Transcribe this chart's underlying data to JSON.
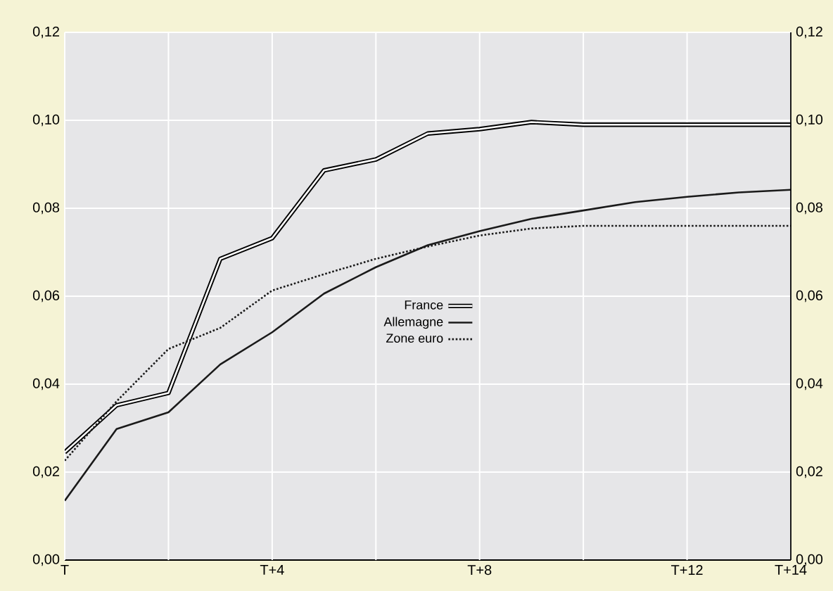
{
  "chart_data": {
    "type": "line",
    "categories": [
      "T",
      null,
      null,
      null,
      "T+4",
      null,
      null,
      null,
      "T+8",
      null,
      null,
      null,
      "T+12",
      null,
      "T+14"
    ],
    "series": [
      {
        "name": "France",
        "color": "#ffffff",
        "line_style": "solid",
        "values": [
          0.0245,
          0.0352,
          0.038,
          0.0685,
          0.0732,
          0.0886,
          0.0911,
          0.097,
          0.098,
          0.0996,
          0.099,
          0.099,
          0.099,
          0.099,
          0.099
        ]
      },
      {
        "name": "Allemagne",
        "color": "#1a1a1a",
        "line_style": "solid",
        "values": [
          0.0135,
          0.0298,
          0.0336,
          0.0445,
          0.0518,
          0.0606,
          0.0666,
          0.0716,
          0.0748,
          0.0776,
          0.0795,
          0.0814,
          0.0826,
          0.0836,
          0.0842
        ]
      },
      {
        "name": "Zone euro",
        "color": "#1a1a1a",
        "line_style": "dotted",
        "values": [
          0.0226,
          0.0361,
          0.048,
          0.0528,
          0.0613,
          0.065,
          0.0685,
          0.0713,
          0.0738,
          0.0754,
          0.076,
          0.076,
          0.076,
          0.076,
          0.076
        ]
      }
    ],
    "ylim": [
      0,
      0.12
    ],
    "yticks": [
      {
        "value": 0,
        "label": "0,00"
      },
      {
        "value": 0.02,
        "label": "0,02"
      },
      {
        "value": 0.04,
        "label": "0,04"
      },
      {
        "value": 0.06,
        "label": "0,06"
      },
      {
        "value": 0.08,
        "label": "0,08"
      },
      {
        "value": 0.1,
        "label": "0,10"
      },
      {
        "value": 0.12,
        "label": "0,12"
      }
    ],
    "y2lim": [
      0,
      0.12
    ],
    "y2ticks": [
      {
        "value": 0,
        "label": "0,00"
      },
      {
        "value": 0.02,
        "label": "0,02"
      },
      {
        "value": 0.04,
        "label": "0,04"
      },
      {
        "value": 0.06,
        "label": "0,06"
      },
      {
        "value": 0.08,
        "label": "0,08"
      },
      {
        "value": 0.1,
        "label": "0,10"
      },
      {
        "value": 0.12,
        "label": "0,12"
      }
    ],
    "grid": true,
    "legend": "center",
    "marker": "none"
  }
}
